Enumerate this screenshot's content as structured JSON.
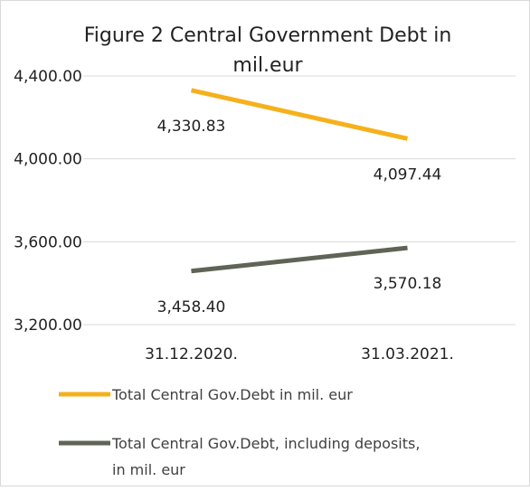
{
  "chart_data": {
    "type": "line",
    "title_line1": "Figure 2 Central Government Debt in",
    "title_line2": "mil.eur",
    "categories": [
      "31.12.2020.",
      "31.03.2021."
    ],
    "ylim": [
      3200,
      4400
    ],
    "yticks": [
      3200,
      3600,
      4000,
      4400
    ],
    "ytick_labels": [
      "3,200.00",
      "3,600.00",
      "4,000.00",
      "4,400.00"
    ],
    "grid": true,
    "legend_position": "bottom",
    "series": [
      {
        "name": "Total Central Gov.Debt in mil. eur",
        "values": [
          4330.83,
          4097.44
        ],
        "labels": [
          "4,330.83",
          "4,097.44"
        ],
        "color": "#F5B11C"
      },
      {
        "name_line1": "Total Central Gov.Debt, including deposits,",
        "name_line2": "in mil. eur",
        "values": [
          3458.4,
          3570.18
        ],
        "labels": [
          "3,458.40",
          "3,570.18"
        ],
        "color": "#5F6456"
      }
    ]
  }
}
